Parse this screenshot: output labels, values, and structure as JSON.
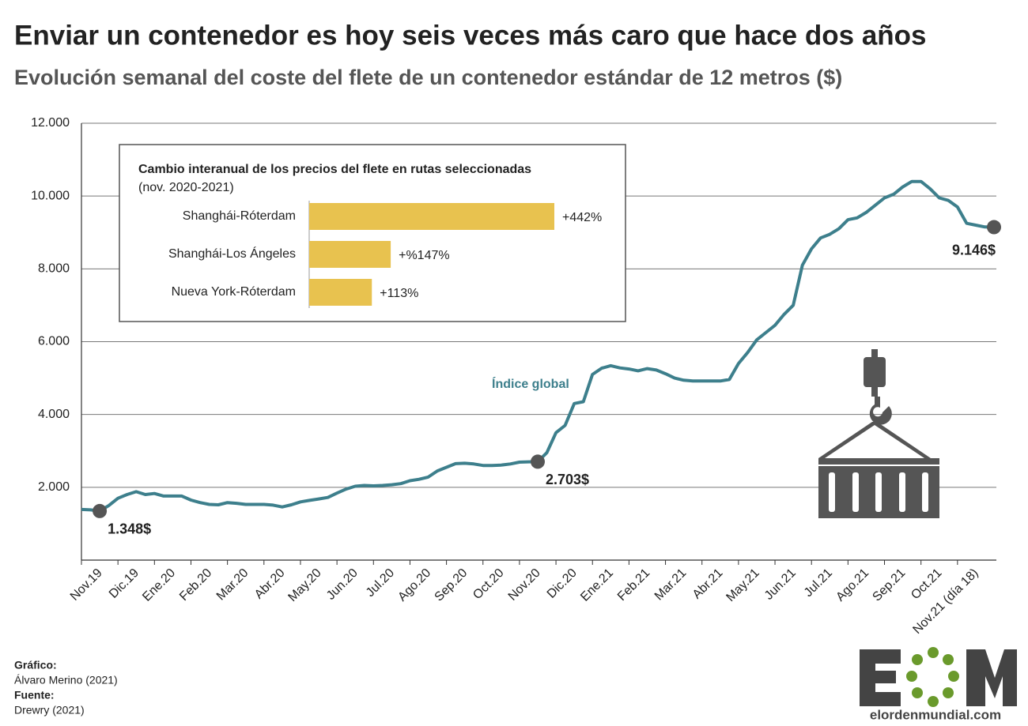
{
  "chart_data": [
    {
      "type": "line",
      "title": "Enviar un contenedor es hoy seis veces más caro que hace dos años",
      "subtitle": "Evolución semanal del coste del flete de un contenedor estándar de 12 metros ($)",
      "annotation": "Índice global",
      "color": "#3d7f8c",
      "grid": true,
      "ylim": [
        0,
        12000
      ],
      "yticks": [
        {
          "value": 2000,
          "label": "2.000"
        },
        {
          "value": 4000,
          "label": "4.000"
        },
        {
          "value": 6000,
          "label": "6.000"
        },
        {
          "value": 8000,
          "label": "8.000"
        },
        {
          "value": 10000,
          "label": "10.000"
        },
        {
          "value": 12000,
          "label": "12.000"
        }
      ],
      "categories": [
        "Nov.19",
        null,
        null,
        null,
        "Dic.19",
        null,
        null,
        null,
        "Ene.20",
        null,
        null,
        null,
        "Feb.20",
        null,
        null,
        null,
        "Mar.20",
        null,
        null,
        null,
        "Abr.20",
        null,
        null,
        null,
        "May.20",
        null,
        null,
        null,
        "Jun.20",
        null,
        null,
        null,
        "Jul.20",
        null,
        null,
        null,
        "Ago.20",
        null,
        null,
        null,
        "Sep.20",
        null,
        null,
        null,
        "Oct.20",
        null,
        null,
        null,
        "Nov.20",
        null,
        null,
        null,
        "Dic.20",
        null,
        null,
        null,
        "Ene.21",
        null,
        null,
        null,
        "Feb.21",
        null,
        null,
        null,
        "Mar.21",
        null,
        null,
        null,
        "Abr.21",
        null,
        null,
        null,
        "May.21",
        null,
        null,
        null,
        "Jun.21",
        null,
        null,
        null,
        "Jul.21",
        null,
        null,
        null,
        "Ago.21",
        null,
        null,
        null,
        "Sep.21",
        null,
        null,
        null,
        "Oct.21",
        null,
        null,
        null,
        "Nov.21 (día 18)",
        null,
        null,
        null,
        null
      ],
      "values": [
        1390,
        1380,
        1348,
        1500,
        1700,
        1800,
        1880,
        1800,
        1830,
        1760,
        1760,
        1760,
        1650,
        1580,
        1530,
        1520,
        1580,
        1560,
        1530,
        1530,
        1530,
        1510,
        1460,
        1520,
        1600,
        1640,
        1680,
        1720,
        1840,
        1950,
        2030,
        2050,
        2040,
        2050,
        2070,
        2100,
        2180,
        2220,
        2280,
        2450,
        2550,
        2650,
        2660,
        2640,
        2600,
        2600,
        2610,
        2640,
        2690,
        2700,
        2703,
        2950,
        3500,
        3700,
        4300,
        4350,
        5100,
        5270,
        5340,
        5280,
        5250,
        5200,
        5260,
        5220,
        5120,
        5000,
        4940,
        4920,
        4920,
        4920,
        4920,
        4960,
        5400,
        5700,
        6050,
        6250,
        6450,
        6750,
        7000,
        8100,
        8550,
        8850,
        8950,
        9100,
        9350,
        9400,
        9550,
        9750,
        9950,
        10050,
        10250,
        10400,
        10400,
        10200,
        9950,
        9880,
        9700,
        9250,
        9200,
        9150,
        9146
      ],
      "value_labels": [
        null,
        null,
        "1.348$",
        null,
        null,
        null,
        null,
        null,
        null,
        null,
        null,
        null,
        null,
        null,
        null,
        null,
        null,
        null,
        null,
        null,
        null,
        null,
        null,
        null,
        null,
        null,
        null,
        null,
        null,
        null,
        null,
        null,
        null,
        null,
        null,
        null,
        null,
        null,
        null,
        null,
        null,
        null,
        null,
        null,
        null,
        null,
        null,
        null,
        null,
        null,
        "2.703$",
        null,
        null,
        null,
        null,
        null,
        null,
        null,
        null,
        null,
        null,
        null,
        null,
        null,
        null,
        null,
        null,
        null,
        null,
        null,
        null,
        null,
        null,
        null,
        null,
        null,
        null,
        null,
        null,
        null,
        null,
        null,
        null,
        null,
        null,
        null,
        null,
        null,
        null,
        null,
        null,
        null,
        null,
        null,
        null,
        null,
        null,
        null,
        null,
        null,
        "9.146$"
      ]
    },
    {
      "type": "hbar",
      "title": "Cambio interanual de los precios del flete en rutas seleccionadas",
      "subtitle": "(nov. 2020-2021)",
      "color": "#e8c24f",
      "categories": [
        "Shanghái-Róterdam",
        "Shanghái-Los Ángeles",
        "Nueva York-Róterdam"
      ],
      "values": [
        442,
        147,
        113
      ],
      "value_labels": [
        "+442%",
        "+%147%",
        "+113%"
      ]
    }
  ],
  "credits": {
    "graphic_label": "Gráfico:",
    "graphic": "Álvaro Merino (2021)",
    "source_label": "Fuente:",
    "source": "Drewry (2021)"
  },
  "logo": "elordenmundial.com"
}
